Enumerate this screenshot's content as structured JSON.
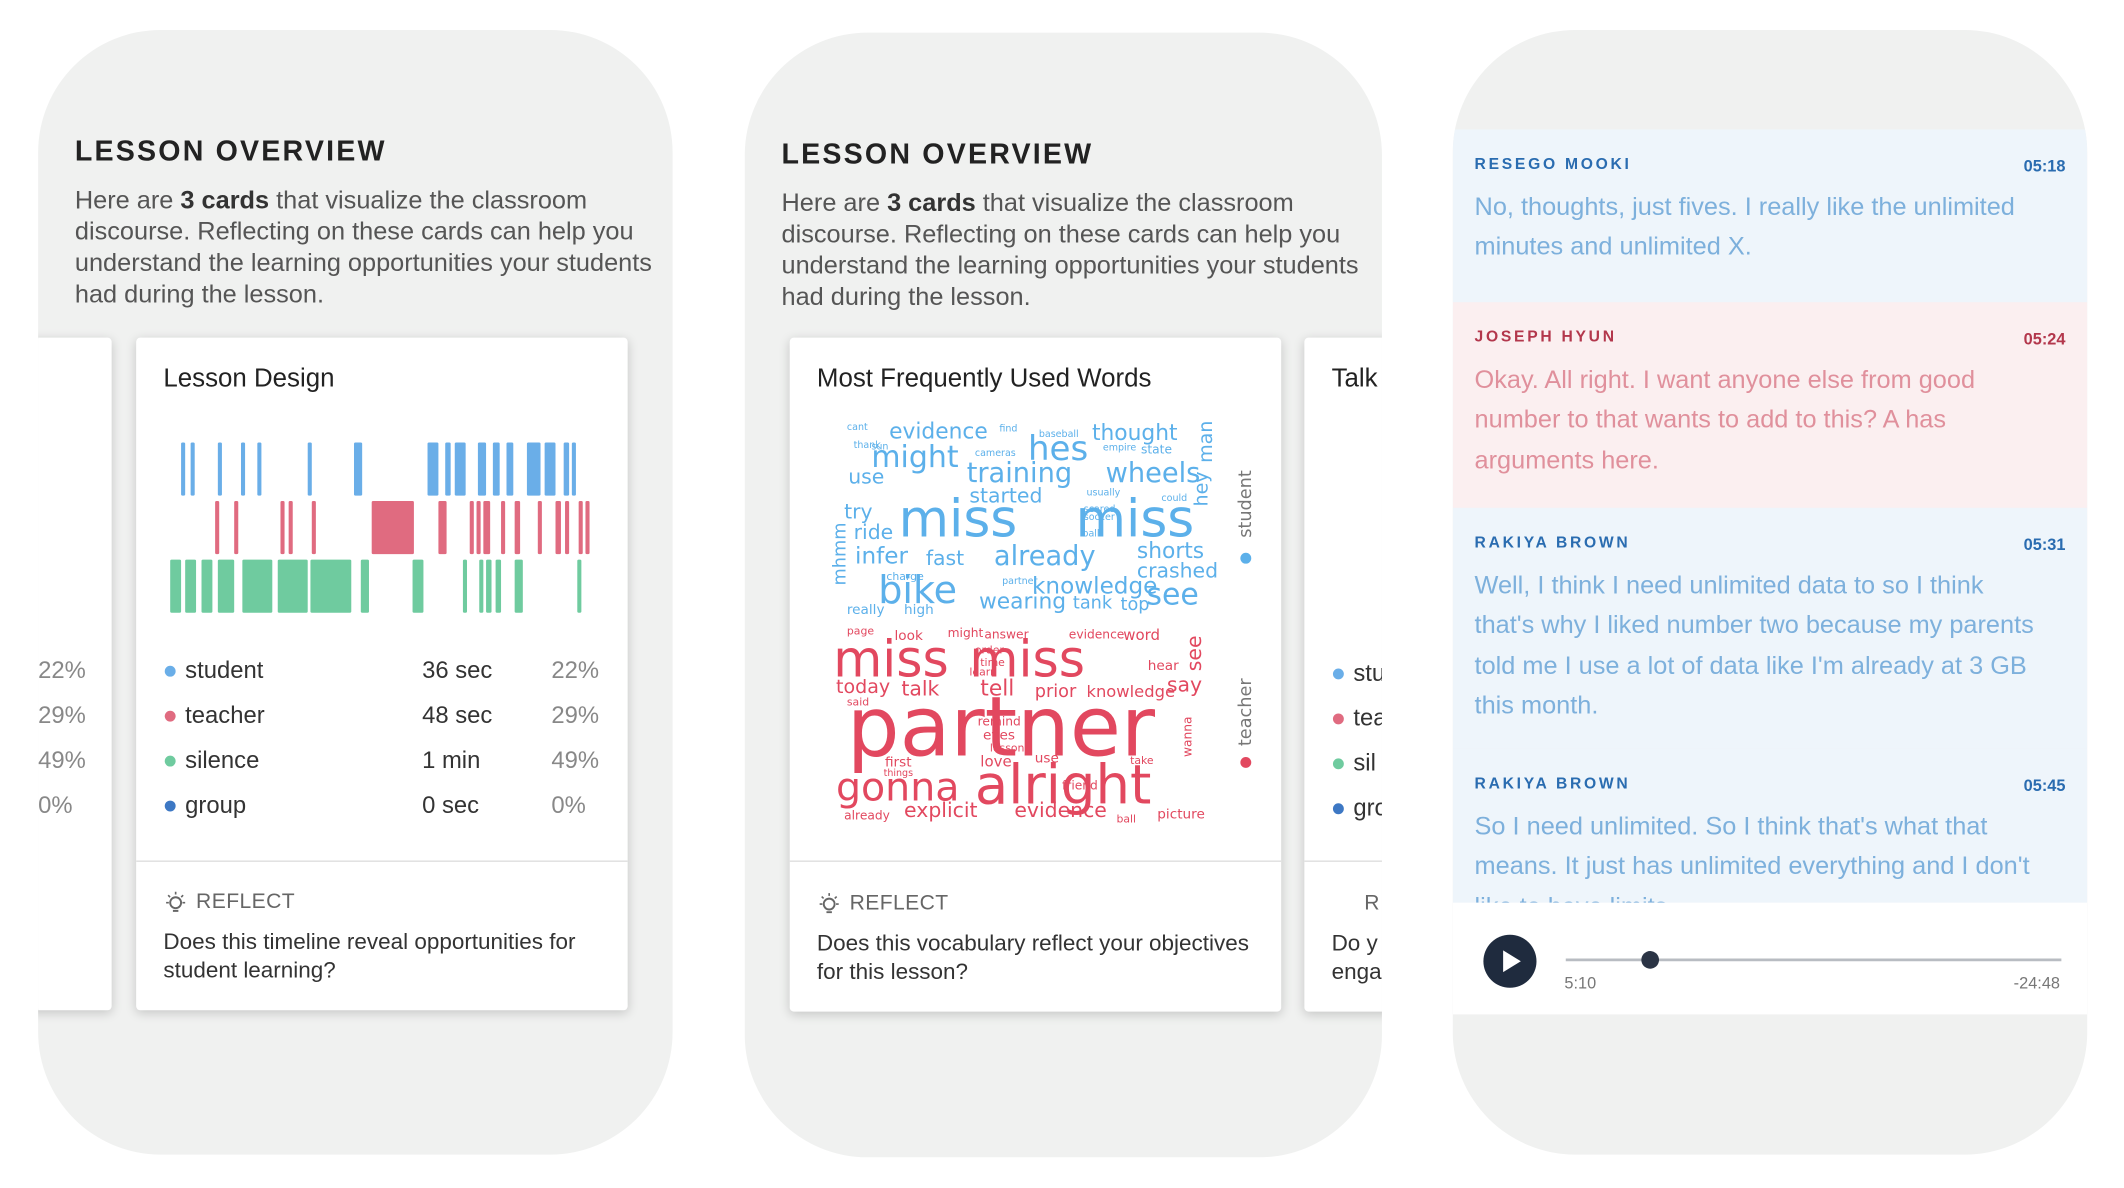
{
  "screens": [
    {
      "title": "LESSON OVERVIEW",
      "intro_before": "Here are ",
      "intro_bold": "3 cards",
      "intro_after": " that visualize the classroom discourse. Reflecting on these cards can help you understand the learning opportunities your students had during the lesson.",
      "previous_card": {
        "percents": [
          "22%",
          "29%",
          "49%",
          "0%"
        ]
      },
      "card": {
        "title": "Lesson Design",
        "legend": [
          {
            "label": "student",
            "duration": "36 sec",
            "percent": "22%",
            "color": "#6aaee8"
          },
          {
            "label": "teacher",
            "duration": "48 sec",
            "percent": "29%",
            "color": "#e06b80"
          },
          {
            "label": "silence",
            "duration": "1 min",
            "percent": "49%",
            "color": "#6fcb9f"
          },
          {
            "label": "group",
            "duration": "0 sec",
            "percent": "0%",
            "color": "#3d78c4"
          }
        ],
        "reflect": "REFLECT",
        "question": "Does this timeline reveal opportunities for student learning?"
      }
    },
    {
      "title": "LESSON OVERVIEW",
      "intro_before": "Here are ",
      "intro_bold": "3 cards",
      "intro_after": " that visualize the classroom discourse. Reflecting on these cards can help you understand the learning opportunities your students had during the lesson.",
      "card": {
        "title": "Most Frequently Used Words",
        "student_label": "student",
        "teacher_label": "teacher",
        "student_words": [
          "evidence",
          "thought",
          "might",
          "hes",
          "use",
          "training",
          "wheels",
          "started",
          "try",
          "miss",
          "miss",
          "ride",
          "infer",
          "fast",
          "already",
          "shorts",
          "crashed",
          "bike",
          "knowledge",
          "see",
          "wearing",
          "tank",
          "top",
          "really",
          "high",
          "hey",
          "man",
          "mhmm",
          "cant",
          "find",
          "baseball",
          "thank",
          "empire",
          "state",
          "cameras",
          "usually",
          "could",
          "scared",
          "soccer",
          "ball",
          "partner",
          "charge",
          "sun"
        ],
        "teacher_words": [
          "page",
          "look",
          "might",
          "answer",
          "evidence",
          "word",
          "miss",
          "miss",
          "see",
          "hear",
          "today",
          "talk",
          "tell",
          "prior",
          "knowledge",
          "say",
          "partner",
          "first",
          "love",
          "use",
          "eyes",
          "remind",
          "wanna",
          "gonna",
          "alright",
          "friend",
          "explicit",
          "evidence",
          "already",
          "ball",
          "picture",
          "order",
          "time",
          "learn",
          "lesson",
          "things",
          "take",
          "said"
        ],
        "reflect": "REFLECT",
        "question": "Does this vocabulary reflect your objectives for this lesson?"
      },
      "next_card": {
        "title": "Talk",
        "legend": [
          "stu",
          "tea",
          "sil",
          "gro"
        ],
        "reflect": "R",
        "question": "Do y enga"
      }
    },
    {
      "transcript": [
        {
          "speaker": "RESEGO MOOKI",
          "time": "05:18",
          "text": "No, thoughts, just fives. I really like the unlimited minutes and unlimited X.",
          "color": "#2a6cb0",
          "text_color": "#7db0dc",
          "background": "#eef5fb"
        },
        {
          "speaker": "JOSEPH HYUN",
          "time": "05:24",
          "text": "Okay. All right. I want anyone else from good number to that wants to add to this? A has arguments here.",
          "color": "#b3374c",
          "text_color": "#e0909c",
          "background": "#fbeff0"
        },
        {
          "speaker": "RAKIYA BROWN",
          "time": "05:31",
          "text": "Well, I think I need unlimited data to so I think that's why I liked number two because my parents told me I use a lot of data like I'm already at 3 GB this month.",
          "color": "#2a6cb0",
          "text_color": "#7db0dc",
          "background": "#eef5fb"
        },
        {
          "speaker": "RAKIYA BROWN",
          "time": "05:45",
          "text": "So I need unlimited. So I think that's what that means. It just has unlimited everything and I don't like to have limits.",
          "color": "#2a6cb0",
          "text_color": "#7db0dc",
          "background": "#eef5fb"
        }
      ],
      "player": {
        "elapsed": "5:10",
        "remaining": "-24:48"
      }
    }
  ]
}
